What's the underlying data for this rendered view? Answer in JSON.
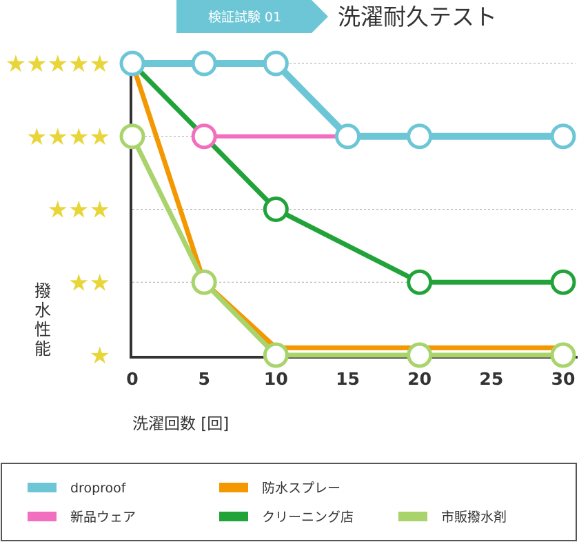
{
  "header": {
    "badge": "検証試験 01",
    "title": "洗濯耐久テスト"
  },
  "chart_data": {
    "type": "line",
    "title": "洗濯耐久テスト",
    "xlabel": "洗濯回数 [回]",
    "ylabel": "撥水性能",
    "x_ticks": [
      0,
      5,
      10,
      15,
      20,
      25,
      30
    ],
    "xlim": [
      0,
      30
    ],
    "ylim": [
      1,
      5
    ],
    "y_ticks": [
      {
        "value": 5,
        "label": "★★★★★"
      },
      {
        "value": 4,
        "label": "★★★★"
      },
      {
        "value": 3,
        "label": "★★★"
      },
      {
        "value": 2,
        "label": "★★"
      },
      {
        "value": 1,
        "label": "★"
      }
    ],
    "grid": "horizontal dotted",
    "series": [
      {
        "name": "droproof",
        "color": "#6cc6d6",
        "marker_color": "#6cc6d6",
        "x": [
          0,
          5,
          10,
          15,
          20,
          30
        ],
        "y": [
          5,
          5,
          5,
          4,
          4,
          4
        ],
        "markers": [
          0,
          5,
          10,
          15,
          20,
          30
        ]
      },
      {
        "name": "新品ウェア",
        "color": "#f26fc0",
        "marker_color": "#f26fc0",
        "x": [
          0,
          5,
          15,
          20,
          30
        ],
        "y": [
          5,
          4,
          4,
          4,
          4
        ],
        "markers": [
          5
        ]
      },
      {
        "name": "クリーニング店",
        "color": "#22a33a",
        "marker_color": "#22a33a",
        "x": [
          0,
          10,
          20,
          30
        ],
        "y": [
          5,
          3,
          2,
          2
        ],
        "markers": [
          10,
          20,
          30
        ]
      },
      {
        "name": "防水スプレー",
        "color": "#f39800",
        "marker_color": "#f39800",
        "x": [
          0,
          5,
          10,
          20,
          30
        ],
        "y": [
          5,
          2,
          1.1,
          1.1,
          1.1
        ],
        "markers": []
      },
      {
        "name": "市販撥水剤",
        "color": "#a9d36b",
        "marker_color": "#a9d36b",
        "x": [
          0,
          5,
          10,
          20,
          30
        ],
        "y": [
          4,
          2,
          1,
          1,
          1
        ],
        "markers": [
          0,
          5,
          10,
          20,
          30
        ]
      }
    ],
    "legend": {
      "placement": "bottom",
      "items": [
        {
          "name": "droproof",
          "color": "#6cc6d6"
        },
        {
          "name": "防水スプレー",
          "color": "#f39800"
        },
        {
          "name": "新品ウェア",
          "color": "#f26fc0"
        },
        {
          "name": "クリーニング店",
          "color": "#22a33a"
        },
        {
          "name": "市販撥水剤",
          "color": "#a9d36b"
        }
      ]
    }
  }
}
